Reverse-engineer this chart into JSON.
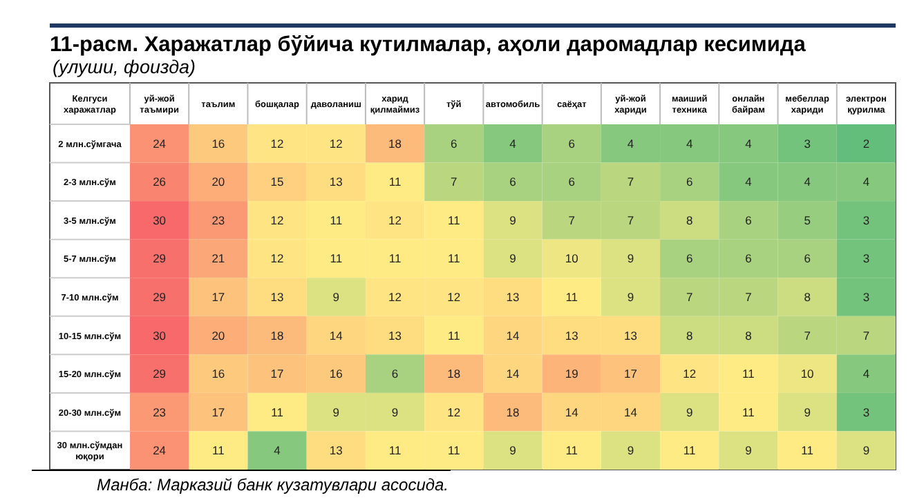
{
  "chart_data": {
    "type": "heatmap",
    "title": "11-расм. Харажатлар бўйича кутилмалар, аҳоли даромадлар кесимида",
    "subtitle": "(улуши, фоизда)",
    "ylabel": "Келгуси харажатлар",
    "categories": [
      "уй-жой таъмири",
      "таълим",
      "бошқалар",
      "даволаниш",
      "харид қилмаймиз",
      "тўй",
      "автомобиль",
      "саёҳат",
      "уй-жой хариди",
      "маиший техника",
      "онлайн байрам",
      "мебеллар хариди",
      "электрон қурилма"
    ],
    "y_categories": [
      "2 млн.сўмгача",
      "2-3 млн.сўм",
      "3-5 млн.сўм",
      "5-7 млн.сўм",
      "7-10 млн.сўм",
      "10-15 млн.сўм",
      "15-20 млн.сўм",
      "20-30 млн.сўм",
      "30 млн.сўмдан юқори"
    ],
    "cells": [
      [
        24,
        16,
        12,
        12,
        18,
        6,
        4,
        6,
        4,
        4,
        4,
        3,
        2
      ],
      [
        26,
        20,
        15,
        13,
        11,
        7,
        6,
        6,
        7,
        6,
        4,
        4,
        4
      ],
      [
        30,
        23,
        12,
        11,
        12,
        11,
        9,
        7,
        7,
        8,
        6,
        5,
        3
      ],
      [
        29,
        21,
        12,
        11,
        11,
        11,
        9,
        10,
        9,
        6,
        6,
        6,
        3
      ],
      [
        29,
        17,
        13,
        9,
        12,
        12,
        13,
        11,
        9,
        7,
        7,
        8,
        3
      ],
      [
        30,
        20,
        18,
        14,
        13,
        11,
        14,
        13,
        13,
        8,
        8,
        7,
        7
      ],
      [
        29,
        16,
        17,
        16,
        6,
        18,
        14,
        19,
        17,
        12,
        11,
        10,
        4
      ],
      [
        23,
        17,
        11,
        9,
        9,
        12,
        18,
        14,
        14,
        9,
        11,
        9,
        3
      ],
      [
        24,
        11,
        4,
        13,
        11,
        11,
        9,
        11,
        9,
        11,
        9,
        11,
        9
      ]
    ],
    "data_labels": true,
    "annotations": [
      "Манба: Марказий банк кузатувлари асосида."
    ]
  }
}
